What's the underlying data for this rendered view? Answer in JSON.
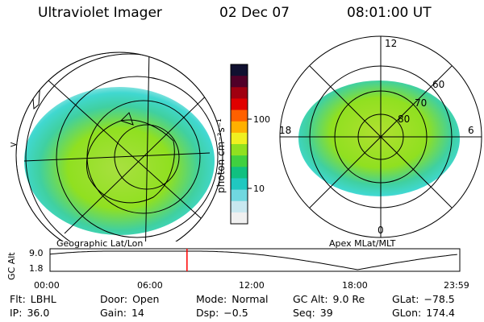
{
  "header": {
    "title": "Ultraviolet Imager",
    "date": "02 Dec 07",
    "time": "08:01:00 UT"
  },
  "left_panel": {
    "caption": "Geographic Lat/Lon",
    "edge_marker": ">"
  },
  "colorbar": {
    "unit_label": "photon cm⁻²s⁻¹",
    "ticks": [
      "100",
      "10"
    ],
    "colors": [
      "#101030",
      "#500028",
      "#a00010",
      "#e00000",
      "#ff6000",
      "#ffb000",
      "#f0f020",
      "#90e020",
      "#40d040",
      "#10c080",
      "#20c8c0",
      "#70d8e0",
      "#c8e8f0",
      "#f0f0f0"
    ]
  },
  "right_panel": {
    "caption": "Apex  MLat/MLT",
    "mlt_labels": {
      "top": "12",
      "bottom": "0",
      "left": "18",
      "right": "6"
    },
    "mlat_labels": [
      "60",
      "70",
      "80"
    ]
  },
  "timeseries": {
    "ylabel": "GC Alt",
    "yticks": [
      "9.0",
      "1.8"
    ],
    "xticks": [
      "00:00",
      "06:00",
      "12:00",
      "18:00",
      "23:59"
    ],
    "marker_time": "08:01",
    "marker_color": "#ff0000"
  },
  "info": {
    "filter": {
      "label": "Flt:",
      "value": "LBHL"
    },
    "door": {
      "label": "Door:",
      "value": "Open"
    },
    "mode": {
      "label": "Mode:",
      "value": "Normal"
    },
    "gc_alt": {
      "label": "GC Alt:",
      "value": "9.0 Re"
    },
    "glat": {
      "label": "GLat:",
      "value": "−78.5"
    },
    "ip": {
      "label": "IP:",
      "value": "36.0"
    },
    "gain": {
      "label": "Gain:",
      "value": "14"
    },
    "dsp": {
      "label": "Dsp:",
      "value": "−0.5"
    },
    "seq": {
      "label": "Seq:",
      "value": "39"
    },
    "glon": {
      "label": "GLon:",
      "value": "174.4"
    }
  }
}
